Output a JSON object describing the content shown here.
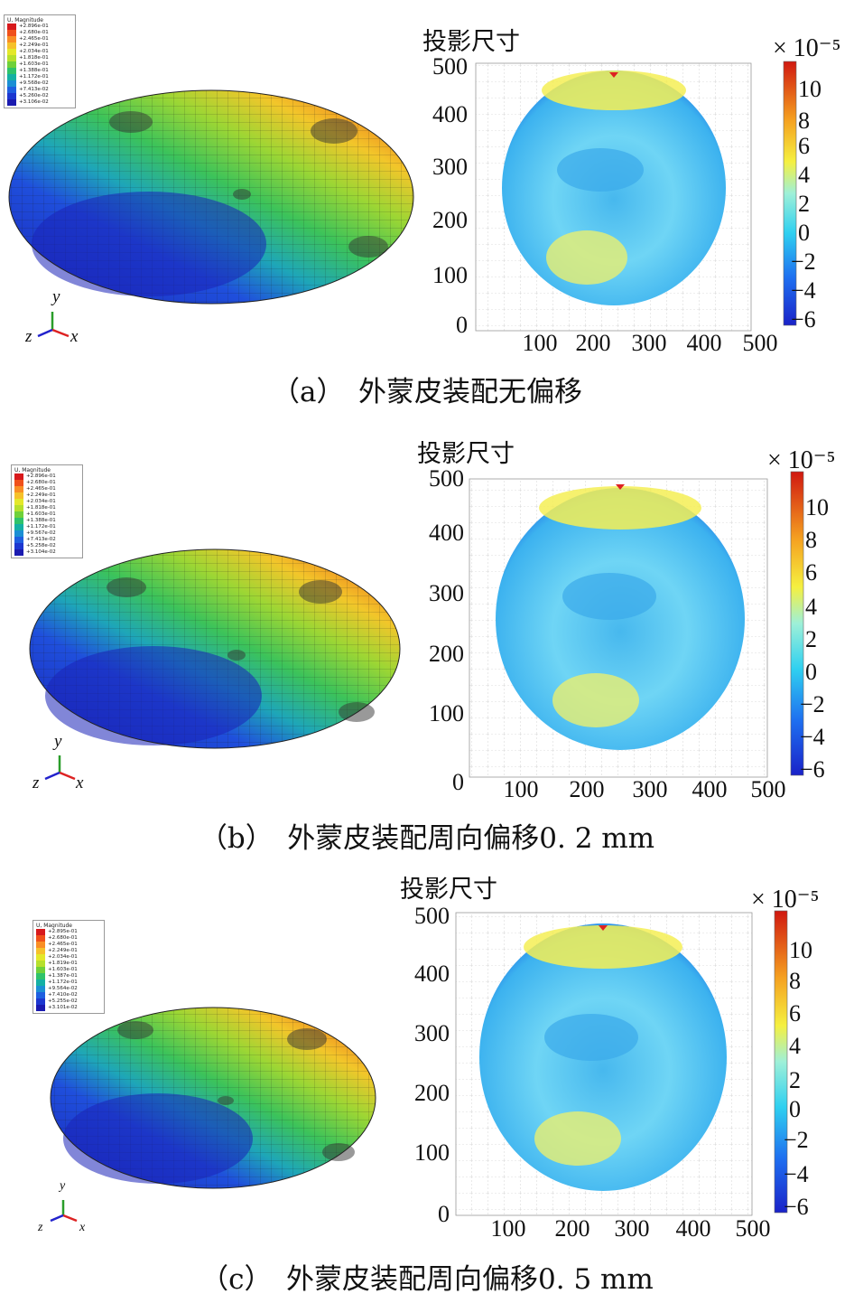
{
  "panels": [
    {
      "id": "a",
      "caption": "（a）　外蒙皮装配无偏移",
      "fe_legend": {
        "title": "U, Magnitude",
        "values": [
          "+2.896e-01",
          "+2.680e-01",
          "+2.465e-01",
          "+2.249e-01",
          "+2.034e-01",
          "+1.818e-01",
          "+1.603e-01",
          "+1.388e-01",
          "+1.172e-01",
          "+9.568e-02",
          "+7.413e-02",
          "+5.260e-02",
          "+3.106e-02"
        ]
      },
      "axis_labels": {
        "y": "y",
        "z": "z",
        "x": "x"
      },
      "proj_title": "投影尺寸",
      "y_ticks": [
        "500",
        "400",
        "300",
        "200",
        "100",
        "0"
      ],
      "x_ticks": [
        "100",
        "200",
        "300",
        "400",
        "500"
      ],
      "colorbar_exponent": "× 10⁻⁵",
      "colorbar_ticks": [
        "10",
        "8",
        "6",
        "4",
        "2",
        "0",
        "−2",
        "−4",
        "−6"
      ]
    },
    {
      "id": "b",
      "caption": "（b）　外蒙皮装配周向偏移0. 2 mm",
      "fe_legend": {
        "title": "U, Magnitude",
        "values": [
          "+2.896e-01",
          "+2.680e-01",
          "+2.465e-01",
          "+2.249e-01",
          "+2.034e-01",
          "+1.818e-01",
          "+1.603e-01",
          "+1.388e-01",
          "+1.172e-01",
          "+9.567e-02",
          "+7.413e-02",
          "+5.258e-02",
          "+3.104e-02"
        ]
      },
      "axis_labels": {
        "y": "y",
        "z": "z",
        "x": "x"
      },
      "proj_title": "投影尺寸",
      "y_ticks": [
        "500",
        "400",
        "300",
        "200",
        "100",
        "0"
      ],
      "x_ticks": [
        "100",
        "200",
        "300",
        "400",
        "500"
      ],
      "colorbar_exponent": "× 10⁻⁵",
      "colorbar_ticks": [
        "10",
        "8",
        "6",
        "4",
        "2",
        "0",
        "−2",
        "−4",
        "−6"
      ]
    },
    {
      "id": "c",
      "caption": "（c）　外蒙皮装配周向偏移0. 5 mm",
      "fe_legend": {
        "title": "U, Magnitude",
        "values": [
          "+2.895e-01",
          "+2.680e-01",
          "+2.465e-01",
          "+2.249e-01",
          "+2.034e-01",
          "+1.819e-01",
          "+1.603e-01",
          "+1.387e-01",
          "+1.172e-01",
          "+9.564e-02",
          "+7.410e-02",
          "+5.255e-02",
          "+3.101e-02"
        ]
      },
      "axis_labels": {
        "y": "y",
        "z": "z",
        "x": "x"
      },
      "proj_title": "投影尺寸",
      "y_ticks": [
        "500",
        "400",
        "300",
        "200",
        "100",
        "0"
      ],
      "x_ticks": [
        "100",
        "200",
        "300",
        "400",
        "500"
      ],
      "colorbar_exponent": "× 10⁻⁵",
      "colorbar_ticks": [
        "10",
        "8",
        "6",
        "4",
        "2",
        "0",
        "−2",
        "−4",
        "−6"
      ]
    }
  ],
  "colors": {
    "legend_swatches": [
      "#d7191c",
      "#f0501a",
      "#f98e24",
      "#f6c12a",
      "#e4e82a",
      "#b6e02c",
      "#6fd13a",
      "#2fc36a",
      "#14b0a4",
      "#1b8fd4",
      "#1e5fe0",
      "#1c37d0",
      "#1a1ab0"
    ]
  }
}
